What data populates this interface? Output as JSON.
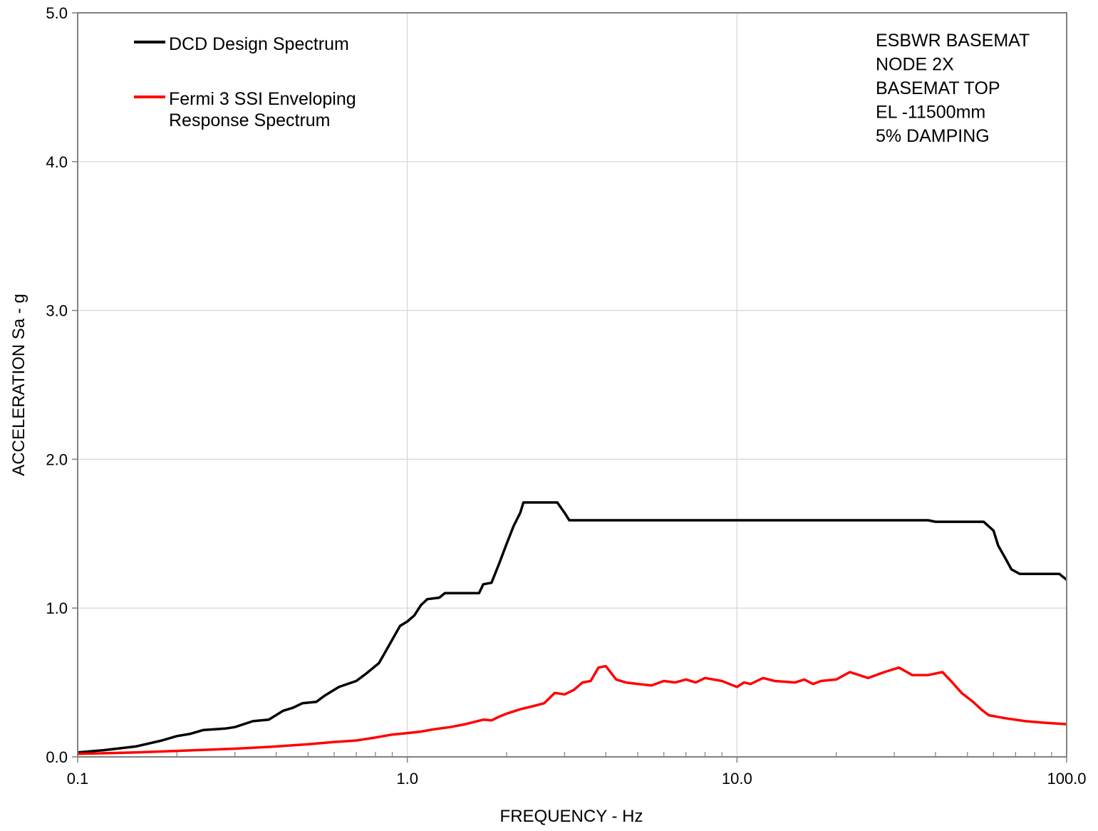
{
  "chart_data": {
    "type": "line",
    "xlabel": "FREQUENCY - Hz",
    "ylabel": "ACCELERATION Sa - g",
    "x_scale": "log",
    "xlim": [
      0.1,
      100.0
    ],
    "ylim": [
      0.0,
      5.0
    ],
    "grid": true,
    "x_ticks": [
      0.1,
      1.0,
      10.0,
      100.0
    ],
    "x_tick_labels": [
      "0.1",
      "1.0",
      "10.0",
      "100.0"
    ],
    "y_ticks": [
      0.0,
      1.0,
      2.0,
      3.0,
      4.0,
      5.0
    ],
    "y_tick_labels": [
      "0.0",
      "1.0",
      "2.0",
      "3.0",
      "4.0",
      "5.0"
    ],
    "legend_position": "top-left",
    "annotation_lines": [
      "ESBWR BASEMAT",
      "NODE 2X",
      "BASEMAT TOP",
      "EL -11500mm",
      "5% DAMPING"
    ],
    "series": [
      {
        "name": "DCD Design Spectrum",
        "legend_lines": [
          "DCD Design Spectrum"
        ],
        "color": "#000000",
        "points": [
          [
            0.1,
            0.03
          ],
          [
            0.12,
            0.045
          ],
          [
            0.15,
            0.07
          ],
          [
            0.18,
            0.11
          ],
          [
            0.2,
            0.14
          ],
          [
            0.22,
            0.155
          ],
          [
            0.24,
            0.18
          ],
          [
            0.28,
            0.19
          ],
          [
            0.3,
            0.2
          ],
          [
            0.34,
            0.24
          ],
          [
            0.38,
            0.25
          ],
          [
            0.42,
            0.31
          ],
          [
            0.45,
            0.33
          ],
          [
            0.48,
            0.36
          ],
          [
            0.53,
            0.37
          ],
          [
            0.56,
            0.41
          ],
          [
            0.62,
            0.47
          ],
          [
            0.7,
            0.51
          ],
          [
            0.75,
            0.56
          ],
          [
            0.82,
            0.63
          ],
          [
            0.87,
            0.73
          ],
          [
            0.95,
            0.88
          ],
          [
            1.0,
            0.91
          ],
          [
            1.05,
            0.95
          ],
          [
            1.1,
            1.02
          ],
          [
            1.15,
            1.06
          ],
          [
            1.25,
            1.07
          ],
          [
            1.3,
            1.1
          ],
          [
            1.45,
            1.1
          ],
          [
            1.65,
            1.1
          ],
          [
            1.7,
            1.16
          ],
          [
            1.8,
            1.17
          ],
          [
            1.9,
            1.3
          ],
          [
            2.0,
            1.43
          ],
          [
            2.1,
            1.55
          ],
          [
            2.2,
            1.64
          ],
          [
            2.25,
            1.71
          ],
          [
            2.5,
            1.71
          ],
          [
            2.85,
            1.71
          ],
          [
            3.0,
            1.64
          ],
          [
            3.1,
            1.59
          ],
          [
            5.0,
            1.59
          ],
          [
            10.0,
            1.59
          ],
          [
            20.0,
            1.59
          ],
          [
            38.0,
            1.59
          ],
          [
            40.0,
            1.58
          ],
          [
            50.0,
            1.58
          ],
          [
            56.0,
            1.58
          ],
          [
            60.0,
            1.52
          ],
          [
            62.0,
            1.42
          ],
          [
            65.0,
            1.34
          ],
          [
            68.0,
            1.26
          ],
          [
            72.0,
            1.23
          ],
          [
            80.0,
            1.23
          ],
          [
            90.0,
            1.23
          ],
          [
            95.0,
            1.23
          ],
          [
            100.0,
            1.19
          ]
        ]
      },
      {
        "name": "Fermi 3 SSI Enveloping Response Spectrum",
        "legend_lines": [
          "Fermi 3 SSI Enveloping",
          "Response Spectrum"
        ],
        "color": "#ff0000",
        "points": [
          [
            0.1,
            0.02
          ],
          [
            0.15,
            0.03
          ],
          [
            0.2,
            0.04
          ],
          [
            0.3,
            0.055
          ],
          [
            0.4,
            0.07
          ],
          [
            0.5,
            0.085
          ],
          [
            0.6,
            0.1
          ],
          [
            0.7,
            0.11
          ],
          [
            0.8,
            0.13
          ],
          [
            0.9,
            0.15
          ],
          [
            1.0,
            0.16
          ],
          [
            1.1,
            0.17
          ],
          [
            1.2,
            0.185
          ],
          [
            1.35,
            0.2
          ],
          [
            1.5,
            0.22
          ],
          [
            1.7,
            0.25
          ],
          [
            1.8,
            0.245
          ],
          [
            1.9,
            0.27
          ],
          [
            2.0,
            0.29
          ],
          [
            2.2,
            0.32
          ],
          [
            2.4,
            0.34
          ],
          [
            2.6,
            0.36
          ],
          [
            2.8,
            0.43
          ],
          [
            3.0,
            0.42
          ],
          [
            3.2,
            0.45
          ],
          [
            3.4,
            0.5
          ],
          [
            3.6,
            0.51
          ],
          [
            3.8,
            0.6
          ],
          [
            4.0,
            0.61
          ],
          [
            4.3,
            0.52
          ],
          [
            4.6,
            0.5
          ],
          [
            5.0,
            0.49
          ],
          [
            5.5,
            0.48
          ],
          [
            6.0,
            0.51
          ],
          [
            6.5,
            0.5
          ],
          [
            7.0,
            0.52
          ],
          [
            7.5,
            0.5
          ],
          [
            8.0,
            0.53
          ],
          [
            9.0,
            0.51
          ],
          [
            10.0,
            0.47
          ],
          [
            10.5,
            0.5
          ],
          [
            11.0,
            0.49
          ],
          [
            12.0,
            0.53
          ],
          [
            13.0,
            0.51
          ],
          [
            15.0,
            0.5
          ],
          [
            16.0,
            0.52
          ],
          [
            17.0,
            0.49
          ],
          [
            18.0,
            0.51
          ],
          [
            20.0,
            0.52
          ],
          [
            22.0,
            0.57
          ],
          [
            25.0,
            0.53
          ],
          [
            28.0,
            0.57
          ],
          [
            31.0,
            0.6
          ],
          [
            34.0,
            0.55
          ],
          [
            38.0,
            0.55
          ],
          [
            42.0,
            0.57
          ],
          [
            45.0,
            0.5
          ],
          [
            48.0,
            0.43
          ],
          [
            52.0,
            0.37
          ],
          [
            55.0,
            0.32
          ],
          [
            58.0,
            0.28
          ],
          [
            65.0,
            0.26
          ],
          [
            75.0,
            0.24
          ],
          [
            85.0,
            0.23
          ],
          [
            100.0,
            0.22
          ]
        ]
      }
    ]
  }
}
